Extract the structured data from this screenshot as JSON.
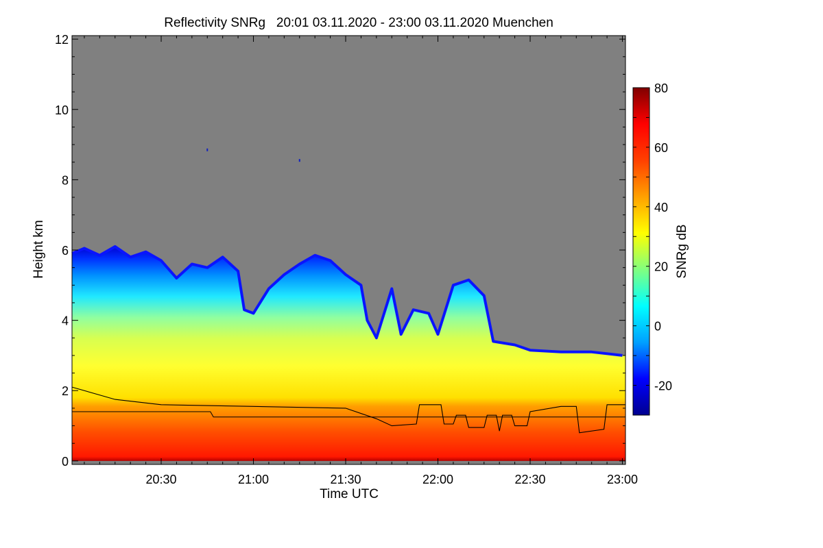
{
  "chart_data": {
    "type": "heatmap",
    "title": "Reflectivity SNRg   20:01 03.11.2020 - 23:00 03.11.2020 Muenchen",
    "xlabel": "Time UTC",
    "ylabel": "Height km",
    "colorbar_label": "SNRg dB",
    "xlim": [
      "20:01",
      "23:01"
    ],
    "ylim": [
      -0.1,
      12.1
    ],
    "x_ticks": [
      {
        "value": "20:30",
        "label": "20:30"
      },
      {
        "value": "21:00",
        "label": "21:00"
      },
      {
        "value": "21:30",
        "label": "21:30"
      },
      {
        "value": "22:00",
        "label": "22:00"
      },
      {
        "value": "22:30",
        "label": "22:30"
      },
      {
        "value": "23:00",
        "label": "23:00"
      }
    ],
    "y_ticks": [
      {
        "value": 0,
        "label": "0"
      },
      {
        "value": 2,
        "label": "2"
      },
      {
        "value": 4,
        "label": "4"
      },
      {
        "value": 6,
        "label": "6"
      },
      {
        "value": 8,
        "label": "8"
      },
      {
        "value": 10,
        "label": "10"
      },
      {
        "value": 12,
        "label": "12"
      }
    ],
    "colorbar_range": [
      -30,
      80
    ],
    "colorbar_ticks": [
      {
        "value": 80,
        "label": "80"
      },
      {
        "value": 60,
        "label": "60"
      },
      {
        "value": 40,
        "label": "40"
      },
      {
        "value": 20,
        "label": "20"
      },
      {
        "value": 0,
        "label": "0"
      },
      {
        "value": -20,
        "label": "-20"
      }
    ],
    "colormap": [
      "#00008f",
      "#0000ff",
      "#00a0ff",
      "#00ffff",
      "#80ff80",
      "#ffff00",
      "#ffa000",
      "#ff4000",
      "#ff0000",
      "#800000"
    ],
    "no_data_color": "#808080",
    "cloud_top": [
      {
        "time": "20:01",
        "height": 5.9
      },
      {
        "time": "20:05",
        "height": 6.05
      },
      {
        "time": "20:10",
        "height": 5.85
      },
      {
        "time": "20:15",
        "height": 6.1
      },
      {
        "time": "20:20",
        "height": 5.8
      },
      {
        "time": "20:25",
        "height": 5.95
      },
      {
        "time": "20:30",
        "height": 5.7
      },
      {
        "time": "20:35",
        "height": 5.2
      },
      {
        "time": "20:40",
        "height": 5.6
      },
      {
        "time": "20:45",
        "height": 5.5
      },
      {
        "time": "20:50",
        "height": 5.8
      },
      {
        "time": "20:55",
        "height": 5.4
      },
      {
        "time": "20:57",
        "height": 4.3
      },
      {
        "time": "21:00",
        "height": 4.2
      },
      {
        "time": "21:05",
        "height": 4.9
      },
      {
        "time": "21:10",
        "height": 5.3
      },
      {
        "time": "21:15",
        "height": 5.6
      },
      {
        "time": "21:20",
        "height": 5.85
      },
      {
        "time": "21:25",
        "height": 5.7
      },
      {
        "time": "21:30",
        "height": 5.3
      },
      {
        "time": "21:35",
        "height": 5.0
      },
      {
        "time": "21:37",
        "height": 4.0
      },
      {
        "time": "21:40",
        "height": 3.5
      },
      {
        "time": "21:45",
        "height": 4.9
      },
      {
        "time": "21:48",
        "height": 3.6
      },
      {
        "time": "21:52",
        "height": 4.3
      },
      {
        "time": "21:57",
        "height": 4.2
      },
      {
        "time": "22:00",
        "height": 3.6
      },
      {
        "time": "22:05",
        "height": 5.0
      },
      {
        "time": "22:10",
        "height": 5.15
      },
      {
        "time": "22:15",
        "height": 4.7
      },
      {
        "time": "22:18",
        "height": 3.4
      },
      {
        "time": "22:25",
        "height": 3.3
      },
      {
        "time": "22:30",
        "height": 3.15
      },
      {
        "time": "22:40",
        "height": 3.1
      },
      {
        "time": "22:50",
        "height": 3.1
      },
      {
        "time": "23:00",
        "height": 3.0
      }
    ],
    "melting_layer_height": [
      {
        "time": "20:01",
        "height": 2.1
      },
      {
        "time": "20:15",
        "height": 1.75
      },
      {
        "time": "20:30",
        "height": 1.6
      },
      {
        "time": "21:00",
        "height": 1.55
      },
      {
        "time": "21:30",
        "height": 1.5
      },
      {
        "time": "21:40",
        "height": 1.2
      },
      {
        "time": "21:45",
        "height": 1.0
      },
      {
        "time": "21:53",
        "height": 1.05
      },
      {
        "time": "21:54",
        "height": 1.6
      },
      {
        "time": "22:01",
        "height": 1.6
      },
      {
        "time": "22:02",
        "height": 1.05
      },
      {
        "time": "22:05",
        "height": 1.05
      },
      {
        "time": "22:06",
        "height": 1.3
      },
      {
        "time": "22:09",
        "height": 1.3
      },
      {
        "time": "22:10",
        "height": 0.95
      },
      {
        "time": "22:15",
        "height": 0.95
      },
      {
        "time": "22:16",
        "height": 1.3
      },
      {
        "time": "22:19",
        "height": 1.3
      },
      {
        "time": "22:20",
        "height": 0.85
      },
      {
        "time": "22:21",
        "height": 1.3
      },
      {
        "time": "22:24",
        "height": 1.3
      },
      {
        "time": "22:25",
        "height": 1.0
      },
      {
        "time": "22:29",
        "height": 1.0
      },
      {
        "time": "22:30",
        "height": 1.4
      },
      {
        "time": "22:40",
        "height": 1.55
      },
      {
        "time": "22:45",
        "height": 1.55
      },
      {
        "time": "22:46",
        "height": 0.8
      },
      {
        "time": "22:54",
        "height": 0.9
      },
      {
        "time": "22:55",
        "height": 1.6
      },
      {
        "time": "23:01",
        "height": 1.6
      }
    ],
    "reference_height": [
      {
        "time": "20:01",
        "height": 1.4
      },
      {
        "time": "20:46",
        "height": 1.4
      },
      {
        "time": "20:47",
        "height": 1.25
      },
      {
        "time": "23:01",
        "height": 1.25
      }
    ],
    "echo_spots": [
      {
        "time": "20:45",
        "height": 8.85
      },
      {
        "time": "21:15",
        "height": 8.55
      }
    ]
  }
}
